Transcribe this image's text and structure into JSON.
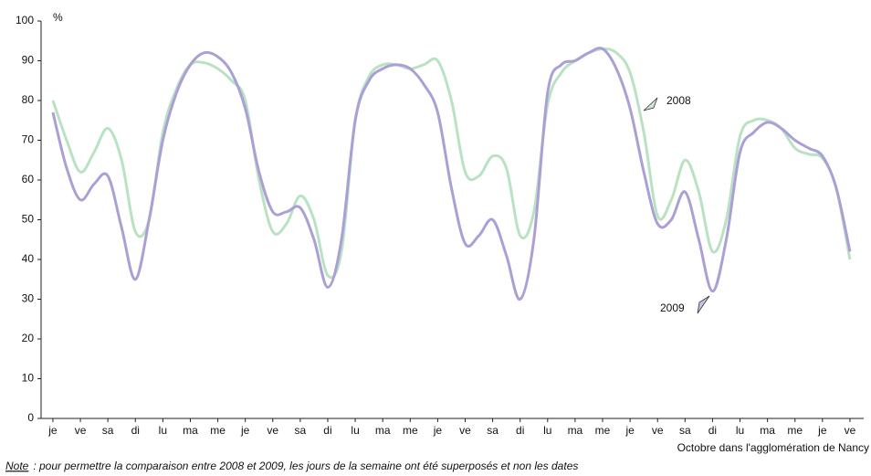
{
  "chart_data": {
    "type": "line",
    "y_unit": "%",
    "x_label": "Octobre dans l'agglomération de Nancy",
    "note_label": "Note",
    "note_text": " : pour permettre la comparaison entre 2008 et 2009, les jours de la semaine ont été superposés et non les dates",
    "x": [
      0,
      0.5,
      1,
      1.5,
      2,
      2.5,
      3,
      3.5,
      4,
      4.5,
      5,
      5.5,
      6,
      6.5,
      7,
      7.5,
      8,
      8.5,
      9,
      9.5,
      10,
      10.5,
      11,
      11.5,
      12,
      12.5,
      13,
      13.5,
      14,
      14.5,
      15,
      15.5,
      16,
      16.5,
      17,
      17.5,
      18,
      18.5,
      19,
      19.5,
      20,
      20.5,
      21,
      21.5,
      22,
      22.5,
      23,
      23.5,
      24,
      24.5,
      25,
      25.5,
      26,
      26.5,
      27,
      27.5,
      28,
      28.5,
      29
    ],
    "series": [
      {
        "name": "2008",
        "color": "#b9e2c3",
        "values": [
          80,
          70,
          62,
          67,
          73,
          65,
          47,
          50,
          72,
          83,
          89,
          89.5,
          88,
          85,
          80,
          60,
          47,
          49,
          56,
          50,
          36,
          42,
          75,
          86,
          89,
          89,
          88,
          89,
          90,
          80,
          62,
          61,
          66,
          63,
          46,
          52,
          79,
          87,
          90,
          92,
          93,
          92,
          87,
          72,
          51,
          55,
          65,
          57,
          42,
          50,
          71,
          75,
          75,
          73,
          68,
          66.5,
          65.5,
          58,
          40
        ]
      },
      {
        "name": "2009",
        "color": "#aaa0d6",
        "values": [
          77,
          63,
          55,
          59,
          61,
          48,
          35,
          50,
          70,
          82,
          89,
          92,
          91,
          87,
          78,
          62,
          52,
          52,
          53,
          45,
          33,
          45,
          75,
          85,
          88,
          89,
          88,
          84,
          77,
          58,
          44,
          46,
          50,
          41,
          30,
          45,
          82,
          89,
          90,
          92,
          93,
          88,
          78,
          62,
          49,
          50,
          57,
          45,
          32,
          45,
          67,
          72,
          74.5,
          73,
          70,
          68,
          66,
          58,
          42
        ]
      }
    ],
    "xlim": [
      -0.43,
      29.5
    ],
    "xticks": [
      {
        "value": 0,
        "label": "je"
      },
      {
        "value": 1,
        "label": "ve"
      },
      {
        "value": 2,
        "label": "sa"
      },
      {
        "value": 3,
        "label": "di"
      },
      {
        "value": 4,
        "label": "lu"
      },
      {
        "value": 5,
        "label": "ma"
      },
      {
        "value": 6,
        "label": "me"
      },
      {
        "value": 7,
        "label": "je"
      },
      {
        "value": 8,
        "label": "ve"
      },
      {
        "value": 9,
        "label": "sa"
      },
      {
        "value": 10,
        "label": "di"
      },
      {
        "value": 11,
        "label": "lu"
      },
      {
        "value": 12,
        "label": "ma"
      },
      {
        "value": 13,
        "label": "me"
      },
      {
        "value": 14,
        "label": "je"
      },
      {
        "value": 15,
        "label": "ve"
      },
      {
        "value": 16,
        "label": "sa"
      },
      {
        "value": 17,
        "label": "di"
      },
      {
        "value": 18,
        "label": "lu"
      },
      {
        "value": 19,
        "label": "ma"
      },
      {
        "value": 20,
        "label": "me"
      },
      {
        "value": 21,
        "label": "je"
      },
      {
        "value": 22,
        "label": "ve"
      },
      {
        "value": 23,
        "label": "sa"
      },
      {
        "value": 24,
        "label": "di"
      },
      {
        "value": 25,
        "label": "lu"
      },
      {
        "value": 26,
        "label": "ma"
      },
      {
        "value": 27,
        "label": "me"
      },
      {
        "value": 28,
        "label": "je"
      },
      {
        "value": 29,
        "label": "ve"
      }
    ],
    "ylim": [
      0,
      100
    ],
    "yticks": [
      0,
      10,
      20,
      30,
      40,
      50,
      60,
      70,
      80,
      90,
      100
    ],
    "grid": false
  }
}
